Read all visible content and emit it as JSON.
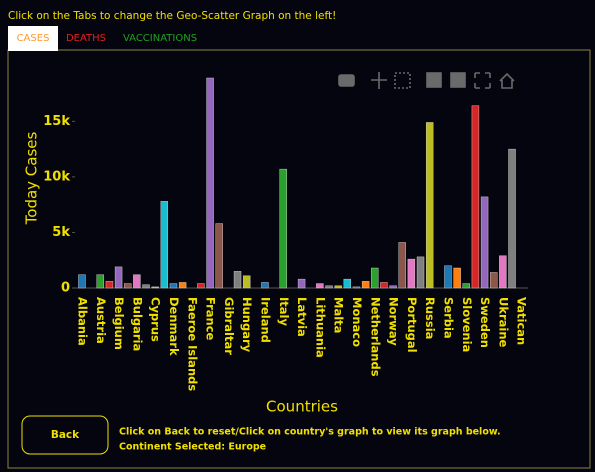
{
  "instruction": "Click on the Tabs to change the Geo-Scatter Graph on the left!",
  "tabs": [
    "CASES",
    "DEATHS",
    "VACCINATIONS"
  ],
  "back_button": "Back",
  "info": [
    "Click on Back to reset/Click on country's graph to view its graph below.",
    "Continent Selected: Europe"
  ],
  "chart_data": {
    "type": "bar",
    "x_label": "Countries",
    "y_label": "Today Cases",
    "categories": [
      "Albania",
      null,
      "Austria",
      null,
      "Belgium",
      null,
      "Bulgaria",
      null,
      "Cyprus",
      null,
      "Denmark",
      null,
      "Faeroe Islands",
      null,
      "France",
      null,
      "Gibraltar",
      null,
      "Hungary",
      null,
      "Ireland",
      null,
      "Italy",
      null,
      "Latvia",
      null,
      "Lithuania",
      null,
      "Malta",
      null,
      "Monaco",
      null,
      "Netherlands",
      null,
      "Norway",
      null,
      "Portugal",
      null,
      "Russia",
      null,
      "Serbia",
      null,
      "Slovenia",
      null,
      "Sweden",
      null,
      "Ukraine",
      null,
      "Vatican"
    ],
    "values": [
      1200,
      0,
      1200,
      600,
      1900,
      400,
      1200,
      300,
      100,
      7800,
      400,
      500,
      0,
      400,
      18900,
      5800,
      0,
      1500,
      1100,
      0,
      500,
      0,
      10700,
      0,
      800,
      0,
      400,
      200,
      200,
      800,
      100,
      600,
      1800,
      500,
      200,
      4100,
      2600,
      2800,
      14900,
      0,
      2000,
      1800,
      400,
      16400,
      8200,
      1400,
      2900,
      12500,
      0
    ],
    "colorway": [
      "#1f77b4",
      "#ff7f0e",
      "#2ca02c",
      "#d62728",
      "#9467bd",
      "#8c564b",
      "#e377c2",
      "#7f7f7f",
      "#bcbd22",
      "#17becf"
    ],
    "ylim": [
      0,
      19800
    ],
    "yticks": [
      0,
      {
        "value": 5000,
        "label": "5k"
      },
      {
        "value": 10000,
        "label": "10k"
      },
      {
        "value": 15000,
        "label": "15k"
      }
    ],
    "grid": false
  }
}
